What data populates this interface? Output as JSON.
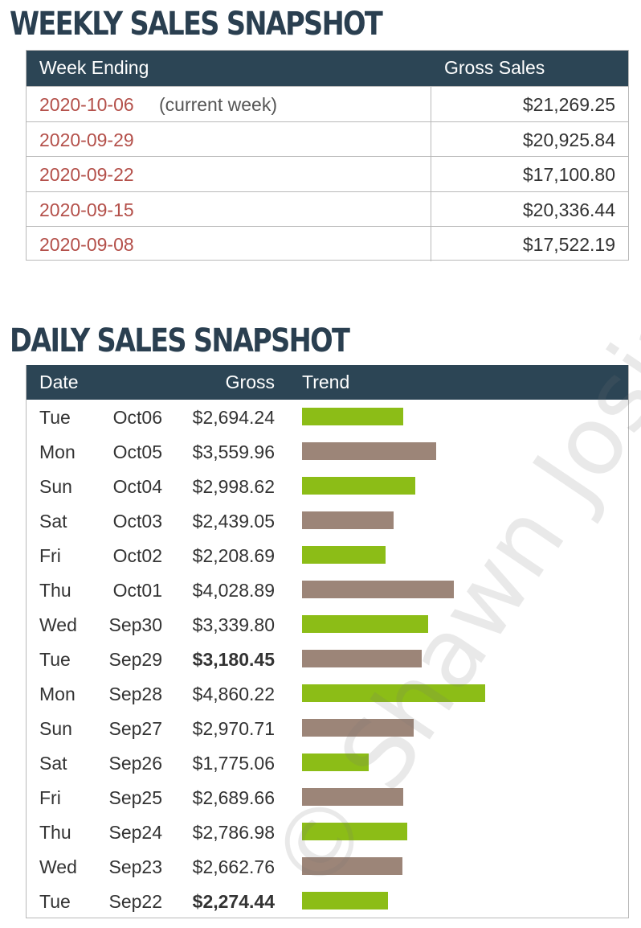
{
  "weekly": {
    "title": "WEEKLY SALES SNAPSHOT",
    "col_week": "Week Ending",
    "col_gross": "Gross Sales",
    "rows": [
      {
        "date": "2020-10-06",
        "note": "(current week)",
        "gross": "$21,269.25"
      },
      {
        "date": "2020-09-29",
        "note": "",
        "gross": "$20,925.84"
      },
      {
        "date": "2020-09-22",
        "note": "",
        "gross": "$17,100.80"
      },
      {
        "date": "2020-09-15",
        "note": "",
        "gross": "$20,336.44"
      },
      {
        "date": "2020-09-08",
        "note": "",
        "gross": "$17,522.19"
      }
    ]
  },
  "daily": {
    "title": "DAILY SALES SNAPSHOT",
    "col_date": "Date",
    "col_gross": "Gross",
    "col_trend": "Trend"
  },
  "colors": {
    "header": "#2c4555",
    "title": "#2a3f50",
    "date_link": "#b4504a",
    "bar_green": "#8cbd17",
    "bar_taupe": "#9c8578"
  },
  "watermark": "© Shawn Josiah",
  "chart_data": {
    "type": "table",
    "title": "DAILY SALES SNAPSHOT",
    "bar_max": 4860.22,
    "rows": [
      {
        "day": "Tue",
        "date": "Oct06",
        "gross": "$2,694.24",
        "value": 2694.24,
        "bold": false,
        "color": "green"
      },
      {
        "day": "Mon",
        "date": "Oct05",
        "gross": "$3,559.96",
        "value": 3559.96,
        "bold": false,
        "color": "taupe"
      },
      {
        "day": "Sun",
        "date": "Oct04",
        "gross": "$2,998.62",
        "value": 2998.62,
        "bold": false,
        "color": "green"
      },
      {
        "day": "Sat",
        "date": "Oct03",
        "gross": "$2,439.05",
        "value": 2439.05,
        "bold": false,
        "color": "taupe"
      },
      {
        "day": "Fri",
        "date": "Oct02",
        "gross": "$2,208.69",
        "value": 2208.69,
        "bold": false,
        "color": "green"
      },
      {
        "day": "Thu",
        "date": "Oct01",
        "gross": "$4,028.89",
        "value": 4028.89,
        "bold": false,
        "color": "taupe"
      },
      {
        "day": "Wed",
        "date": "Sep30",
        "gross": "$3,339.80",
        "value": 3339.8,
        "bold": false,
        "color": "green"
      },
      {
        "day": "Tue",
        "date": "Sep29",
        "gross": "$3,180.45",
        "value": 3180.45,
        "bold": true,
        "color": "taupe"
      },
      {
        "day": "Mon",
        "date": "Sep28",
        "gross": "$4,860.22",
        "value": 4860.22,
        "bold": false,
        "color": "green"
      },
      {
        "day": "Sun",
        "date": "Sep27",
        "gross": "$2,970.71",
        "value": 2970.71,
        "bold": false,
        "color": "taupe"
      },
      {
        "day": "Sat",
        "date": "Sep26",
        "gross": "$1,775.06",
        "value": 1775.06,
        "bold": false,
        "color": "green"
      },
      {
        "day": "Fri",
        "date": "Sep25",
        "gross": "$2,689.66",
        "value": 2689.66,
        "bold": false,
        "color": "taupe"
      },
      {
        "day": "Thu",
        "date": "Sep24",
        "gross": "$2,786.98",
        "value": 2786.98,
        "bold": false,
        "color": "green"
      },
      {
        "day": "Wed",
        "date": "Sep23",
        "gross": "$2,662.76",
        "value": 2662.76,
        "bold": false,
        "color": "taupe"
      },
      {
        "day": "Tue",
        "date": "Sep22",
        "gross": "$2,274.44",
        "value": 2274.44,
        "bold": true,
        "color": "green"
      }
    ]
  }
}
